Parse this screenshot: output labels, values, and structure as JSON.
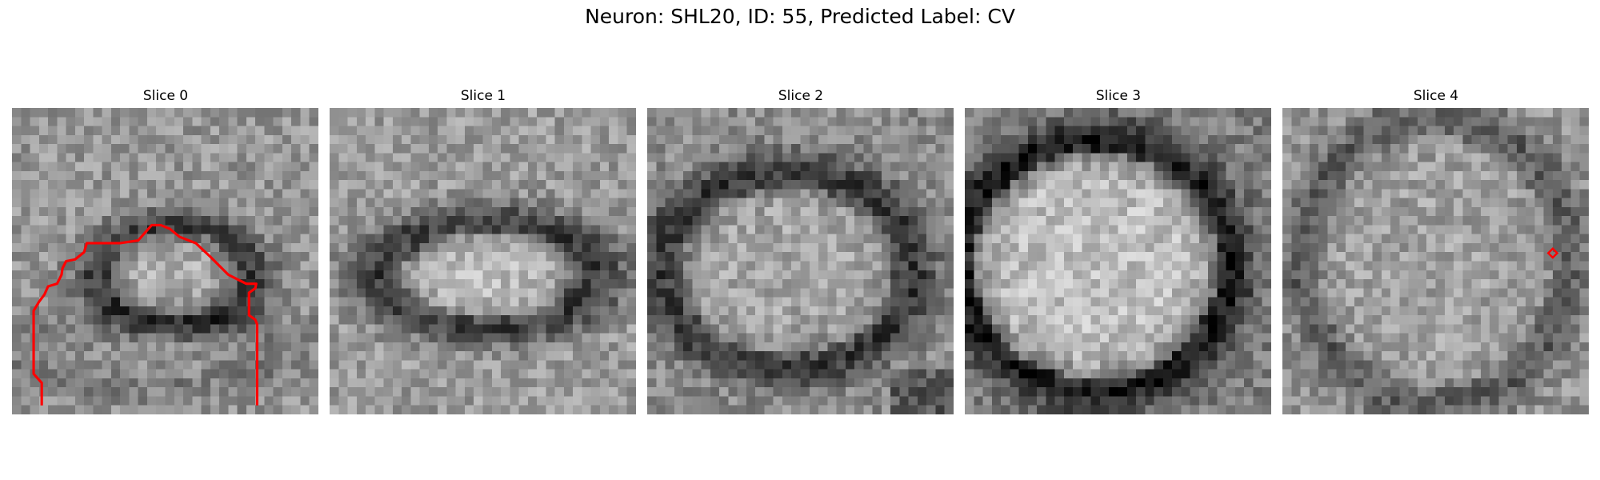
{
  "figure": {
    "title": "Neuron: SHL20, ID: 55, Predicted Label: CV"
  },
  "panels": [
    {
      "label": "Slice 0"
    },
    {
      "label": "Slice 1"
    },
    {
      "label": "Slice 2"
    },
    {
      "label": "Slice 3"
    },
    {
      "label": "Slice 4"
    }
  ],
  "colors": {
    "overlay": "#ff0000",
    "background": "#ffffff"
  }
}
